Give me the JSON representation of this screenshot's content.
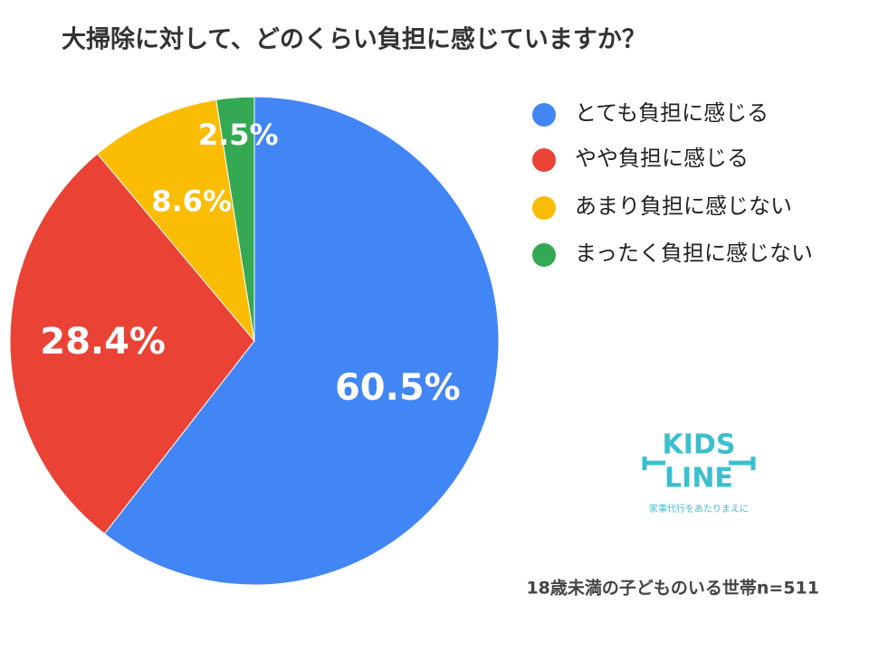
{
  "chart_data": {
    "type": "pie",
    "title": "大掃除に対して、どのくらい負担に感じていますか？",
    "categories": [
      "とても負担に感じる",
      "やや負担に感じる",
      "あまり負担に感じない",
      "まったく負担に感じない"
    ],
    "values": [
      60.5,
      28.4,
      8.6,
      2.5
    ],
    "value_labels": [
      "60.5%",
      "28.4%",
      "8.6%",
      "2.5%"
    ],
    "colors": [
      "#4285f4",
      "#ea4335",
      "#fbbc04",
      "#34a853"
    ],
    "legend": "right",
    "annotation": "18歳未満の子どものいる世帯n=511",
    "logo_lines": [
      "KIDS",
      "LINE"
    ],
    "logo_tagline": "家事代行をあたりまえに"
  }
}
